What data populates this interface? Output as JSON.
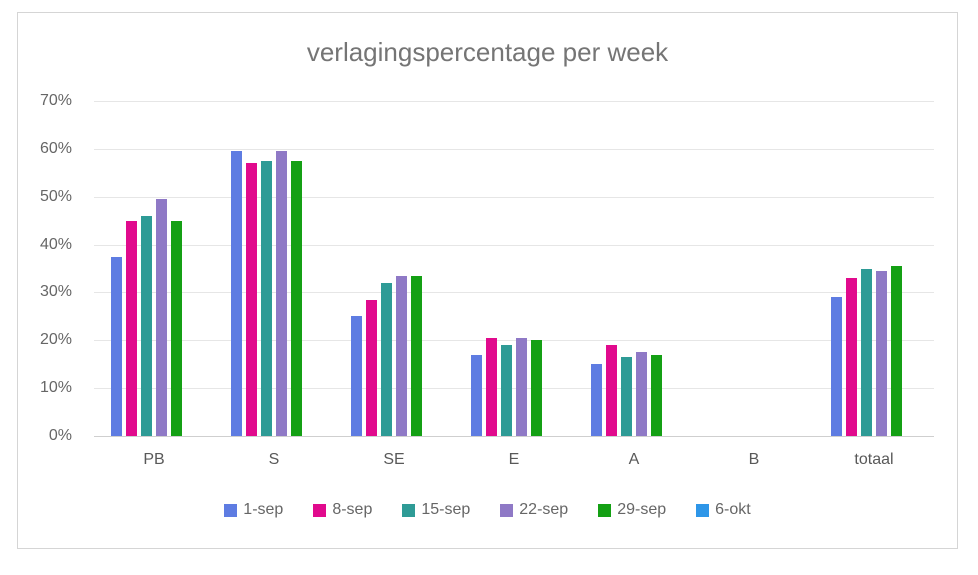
{
  "chart_data": {
    "type": "bar",
    "title": "verlagingspercentage per week",
    "categories": [
      "PB",
      "S",
      "SE",
      "E",
      "A",
      "B",
      "totaal"
    ],
    "series": [
      {
        "name": "1-sep",
        "color": "#5e7ce2",
        "values": [
          37.5,
          59.5,
          25,
          17,
          15,
          0,
          29
        ]
      },
      {
        "name": "8-sep",
        "color": "#e10a8d",
        "values": [
          45,
          57,
          28.5,
          20.5,
          19,
          0,
          33
        ]
      },
      {
        "name": "15-sep",
        "color": "#2e9b96",
        "values": [
          46,
          57.5,
          32,
          19,
          16.5,
          0,
          35
        ]
      },
      {
        "name": "22-sep",
        "color": "#8f79c6",
        "values": [
          49.5,
          59.5,
          33.5,
          20.5,
          17.5,
          0,
          34.5
        ]
      },
      {
        "name": "29-sep",
        "color": "#14a014",
        "values": [
          45,
          57.5,
          33.5,
          20,
          17,
          0,
          35.5
        ]
      },
      {
        "name": "6-okt",
        "color": "#2e96e8",
        "values": [
          null,
          null,
          null,
          null,
          null,
          null,
          null
        ]
      }
    ],
    "xlabel": "",
    "ylabel": "",
    "ylim": [
      0,
      70
    ],
    "ytick_step": 10,
    "ytick_suffix": "%",
    "grid": true,
    "legend_position": "bottom"
  }
}
